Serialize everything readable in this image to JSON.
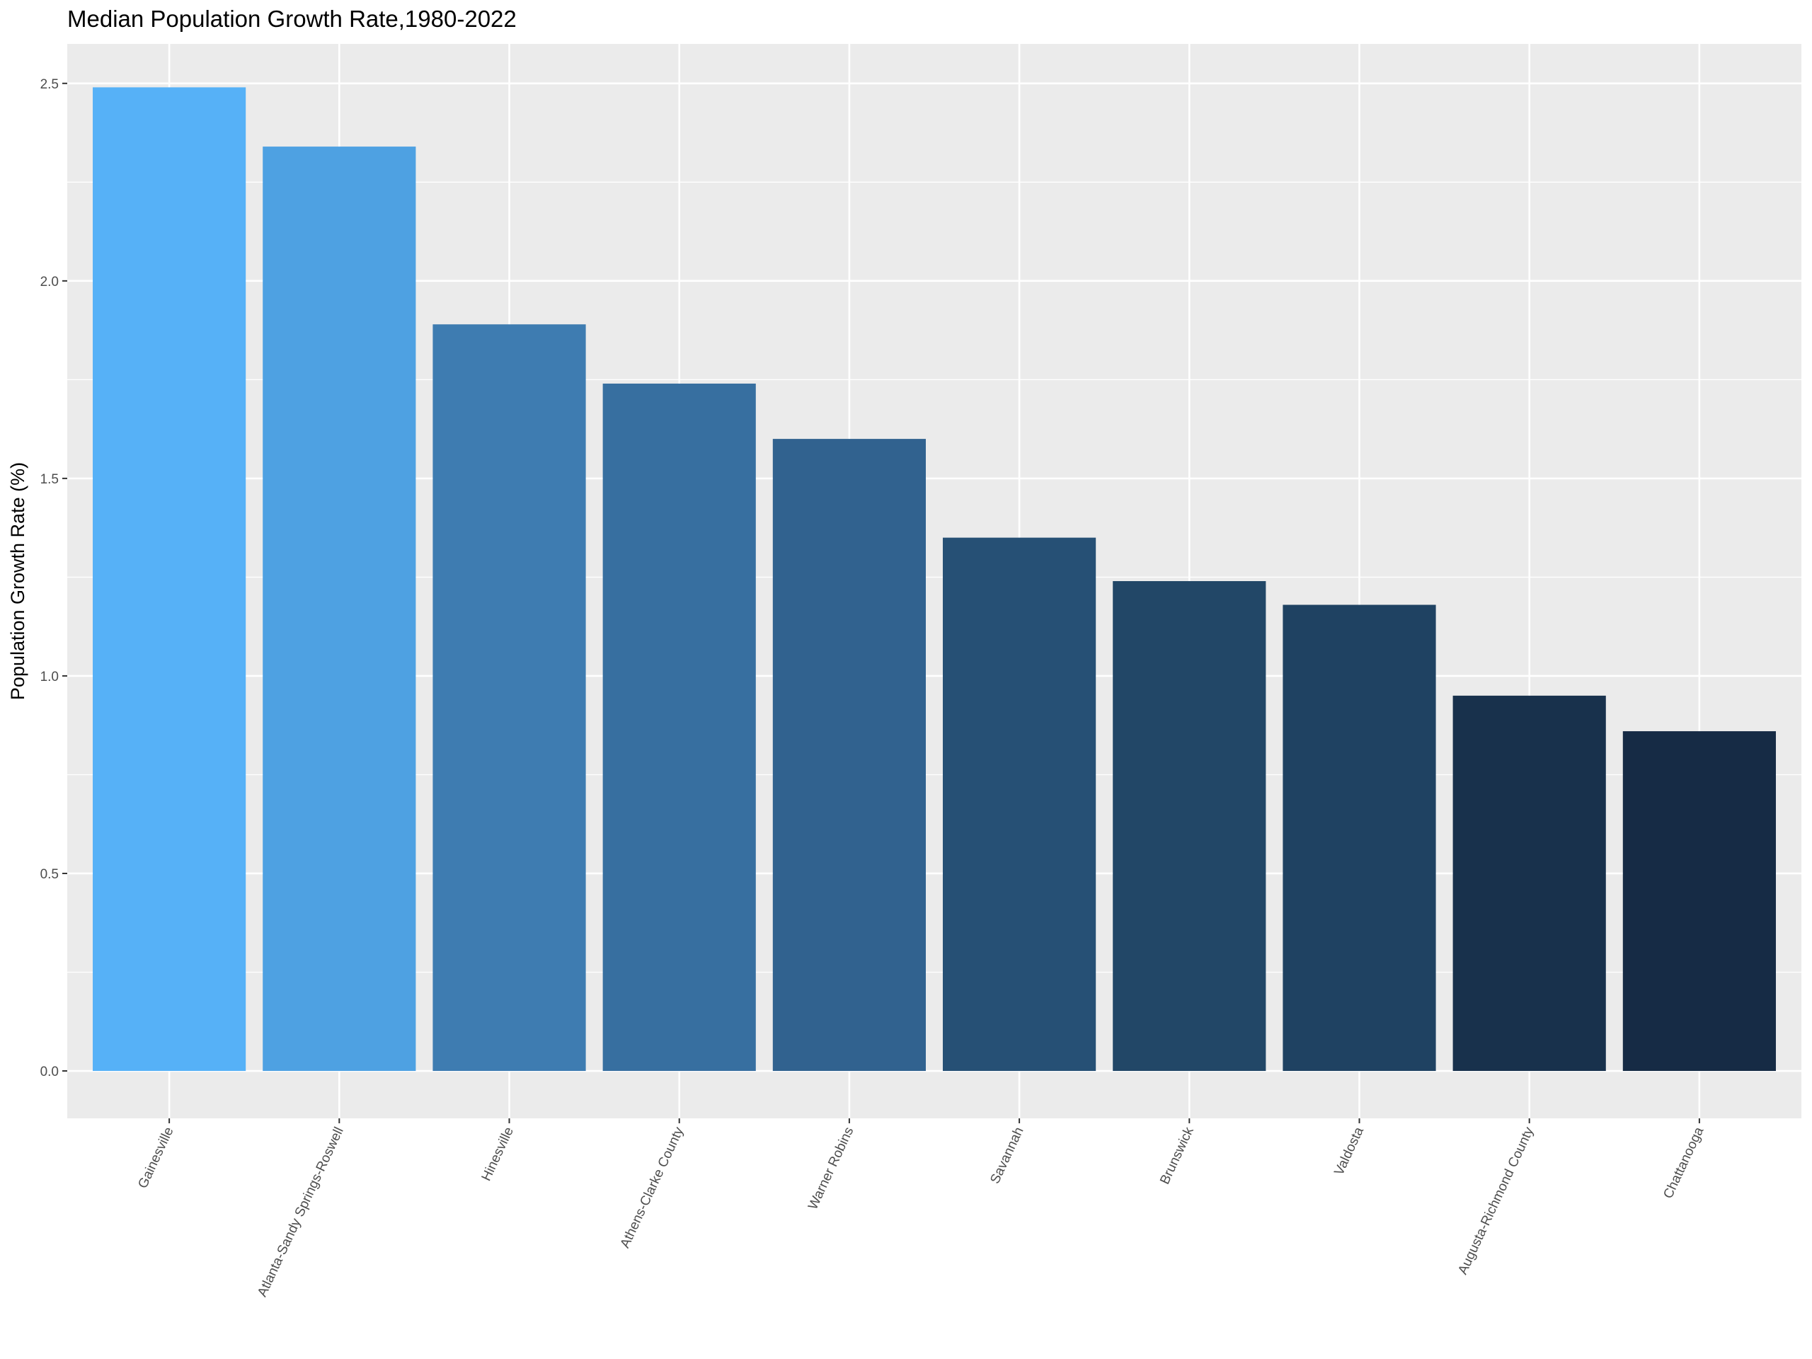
{
  "chart_data": {
    "type": "bar",
    "title": "Median Population Growth Rate,1980-2022",
    "xlabel": "",
    "ylabel": "Population Growth Rate (%)",
    "ylim": [
      -0.12,
      2.6
    ],
    "y_ticks": [
      "0.0",
      "0.5",
      "1.0",
      "1.5",
      "2.0",
      "2.5"
    ],
    "grid": true,
    "legend": "none",
    "categories": [
      "Gainesville",
      "Atlanta-Sandy Springs-Roswell",
      "Hinesville",
      "Athens-Clarke County",
      "Warner Robins",
      "Savannah",
      "Brunswick",
      "Valdosta",
      "Augusta-Richmond County",
      "Chattanooga"
    ],
    "values": [
      2.49,
      2.34,
      1.89,
      1.74,
      1.6,
      1.35,
      1.24,
      1.18,
      0.95,
      0.86
    ],
    "colors": [
      "#56B1F7",
      "#4EA1E2",
      "#3E7CB1",
      "#376FA0",
      "#31628F",
      "#265075",
      "#224767",
      "#1F4262",
      "#18314C",
      "#162B45"
    ],
    "panel_background": "#EBEBEB",
    "grid_color": "#FFFFFF"
  }
}
